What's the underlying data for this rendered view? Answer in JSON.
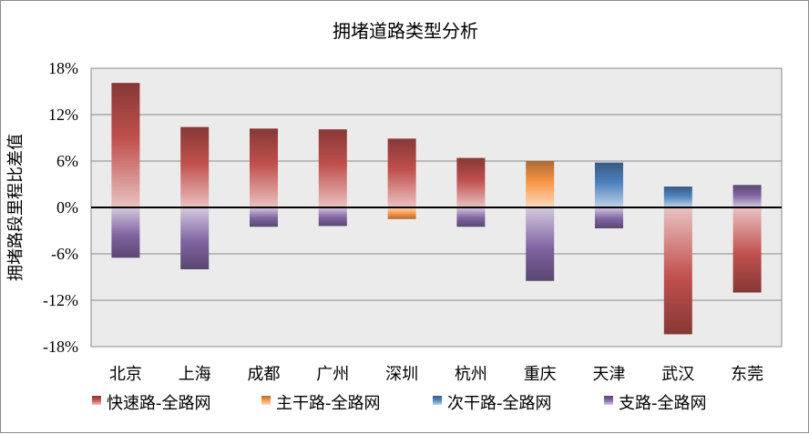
{
  "chart_data": {
    "type": "bar",
    "title": "拥堵道路类型分析",
    "xlabel": "",
    "ylabel": "拥堵路段里程比差值",
    "ylim": [
      -18,
      18
    ],
    "yticks": [
      18,
      12,
      6,
      0,
      -6,
      -12,
      -18
    ],
    "ytick_labels": [
      "18%",
      "12%",
      "6%",
      "0%",
      "-6%",
      "-12%",
      "-18%"
    ],
    "grid": true,
    "legend_position": "bottom",
    "categories": [
      "北京",
      "上海",
      "成都",
      "广州",
      "深圳",
      "杭州",
      "重庆",
      "天津",
      "武汉",
      "东莞"
    ],
    "series": [
      {
        "name": "快速路-全路网",
        "color": "#c0504d",
        "values": [
          16.1,
          10.4,
          10.2,
          10.1,
          8.9,
          6.4,
          null,
          null,
          -16.4,
          -11.0
        ]
      },
      {
        "name": "主干路-全路网",
        "color": "#f79646",
        "values": [
          null,
          null,
          null,
          null,
          -1.5,
          null,
          6.0,
          null,
          null,
          null
        ]
      },
      {
        "name": "次干路-全路网",
        "color": "#4f81bd",
        "values": [
          null,
          null,
          null,
          null,
          null,
          null,
          null,
          5.8,
          2.7,
          null
        ]
      },
      {
        "name": "支路-全路网",
        "color": "#8064a2",
        "values": [
          -6.5,
          -8.0,
          -2.5,
          -2.4,
          null,
          -2.5,
          -9.5,
          -2.7,
          null,
          2.9
        ]
      }
    ]
  }
}
